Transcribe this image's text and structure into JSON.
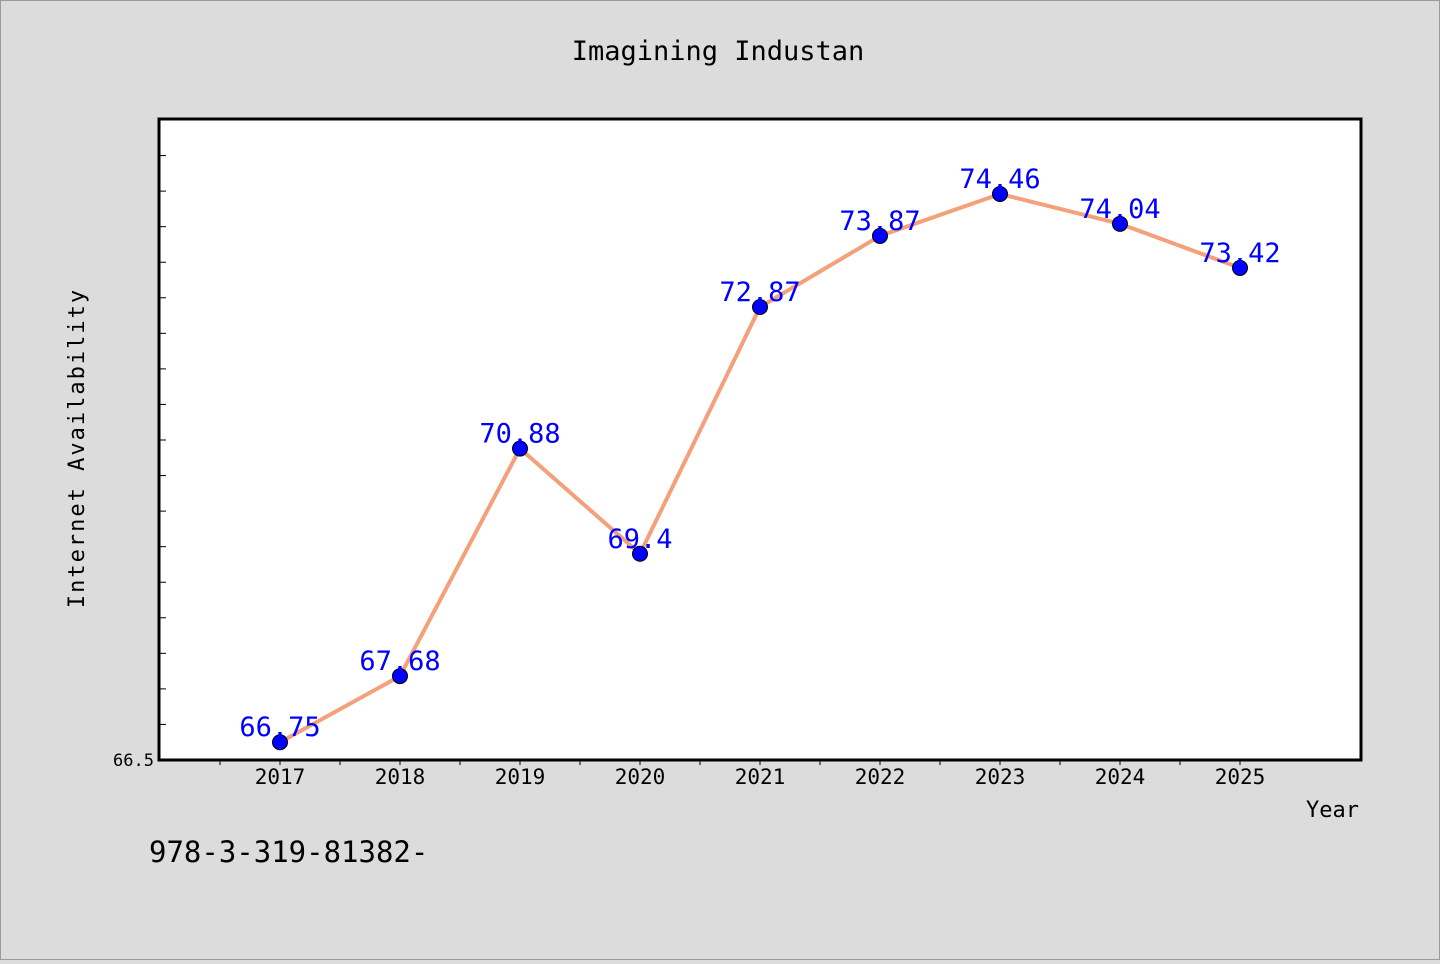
{
  "chart_data": {
    "type": "line",
    "title": "Imagining Industan",
    "xlabel": "Year",
    "ylabel": "Internet Availability",
    "categories": [
      "2017",
      "2018",
      "2019",
      "2020",
      "2021",
      "2022",
      "2023",
      "2024",
      "2025"
    ],
    "series": [
      {
        "values": [
          66.75,
          67.68,
          70.88,
          69.4,
          72.87,
          73.87,
          74.46,
          74.04,
          73.42
        ],
        "labels": [
          "66.75",
          "67.68",
          "70.88",
          "69.4",
          "72.87",
          "73.87",
          "74.46",
          "74.04",
          "73.42"
        ]
      }
    ],
    "x_range": [
      2016,
      2025.5
    ],
    "ylim": [
      66.5,
      75.5
    ],
    "y_tick_labels": [
      "66.5"
    ],
    "grid": false,
    "colors": {
      "line": "#f4a07a",
      "marker": "#0000ff",
      "data_label": "#0000ff",
      "background": "#dcdcdc",
      "plot_background": "#ffffff"
    },
    "footnote": "978-3-319-81382-"
  }
}
